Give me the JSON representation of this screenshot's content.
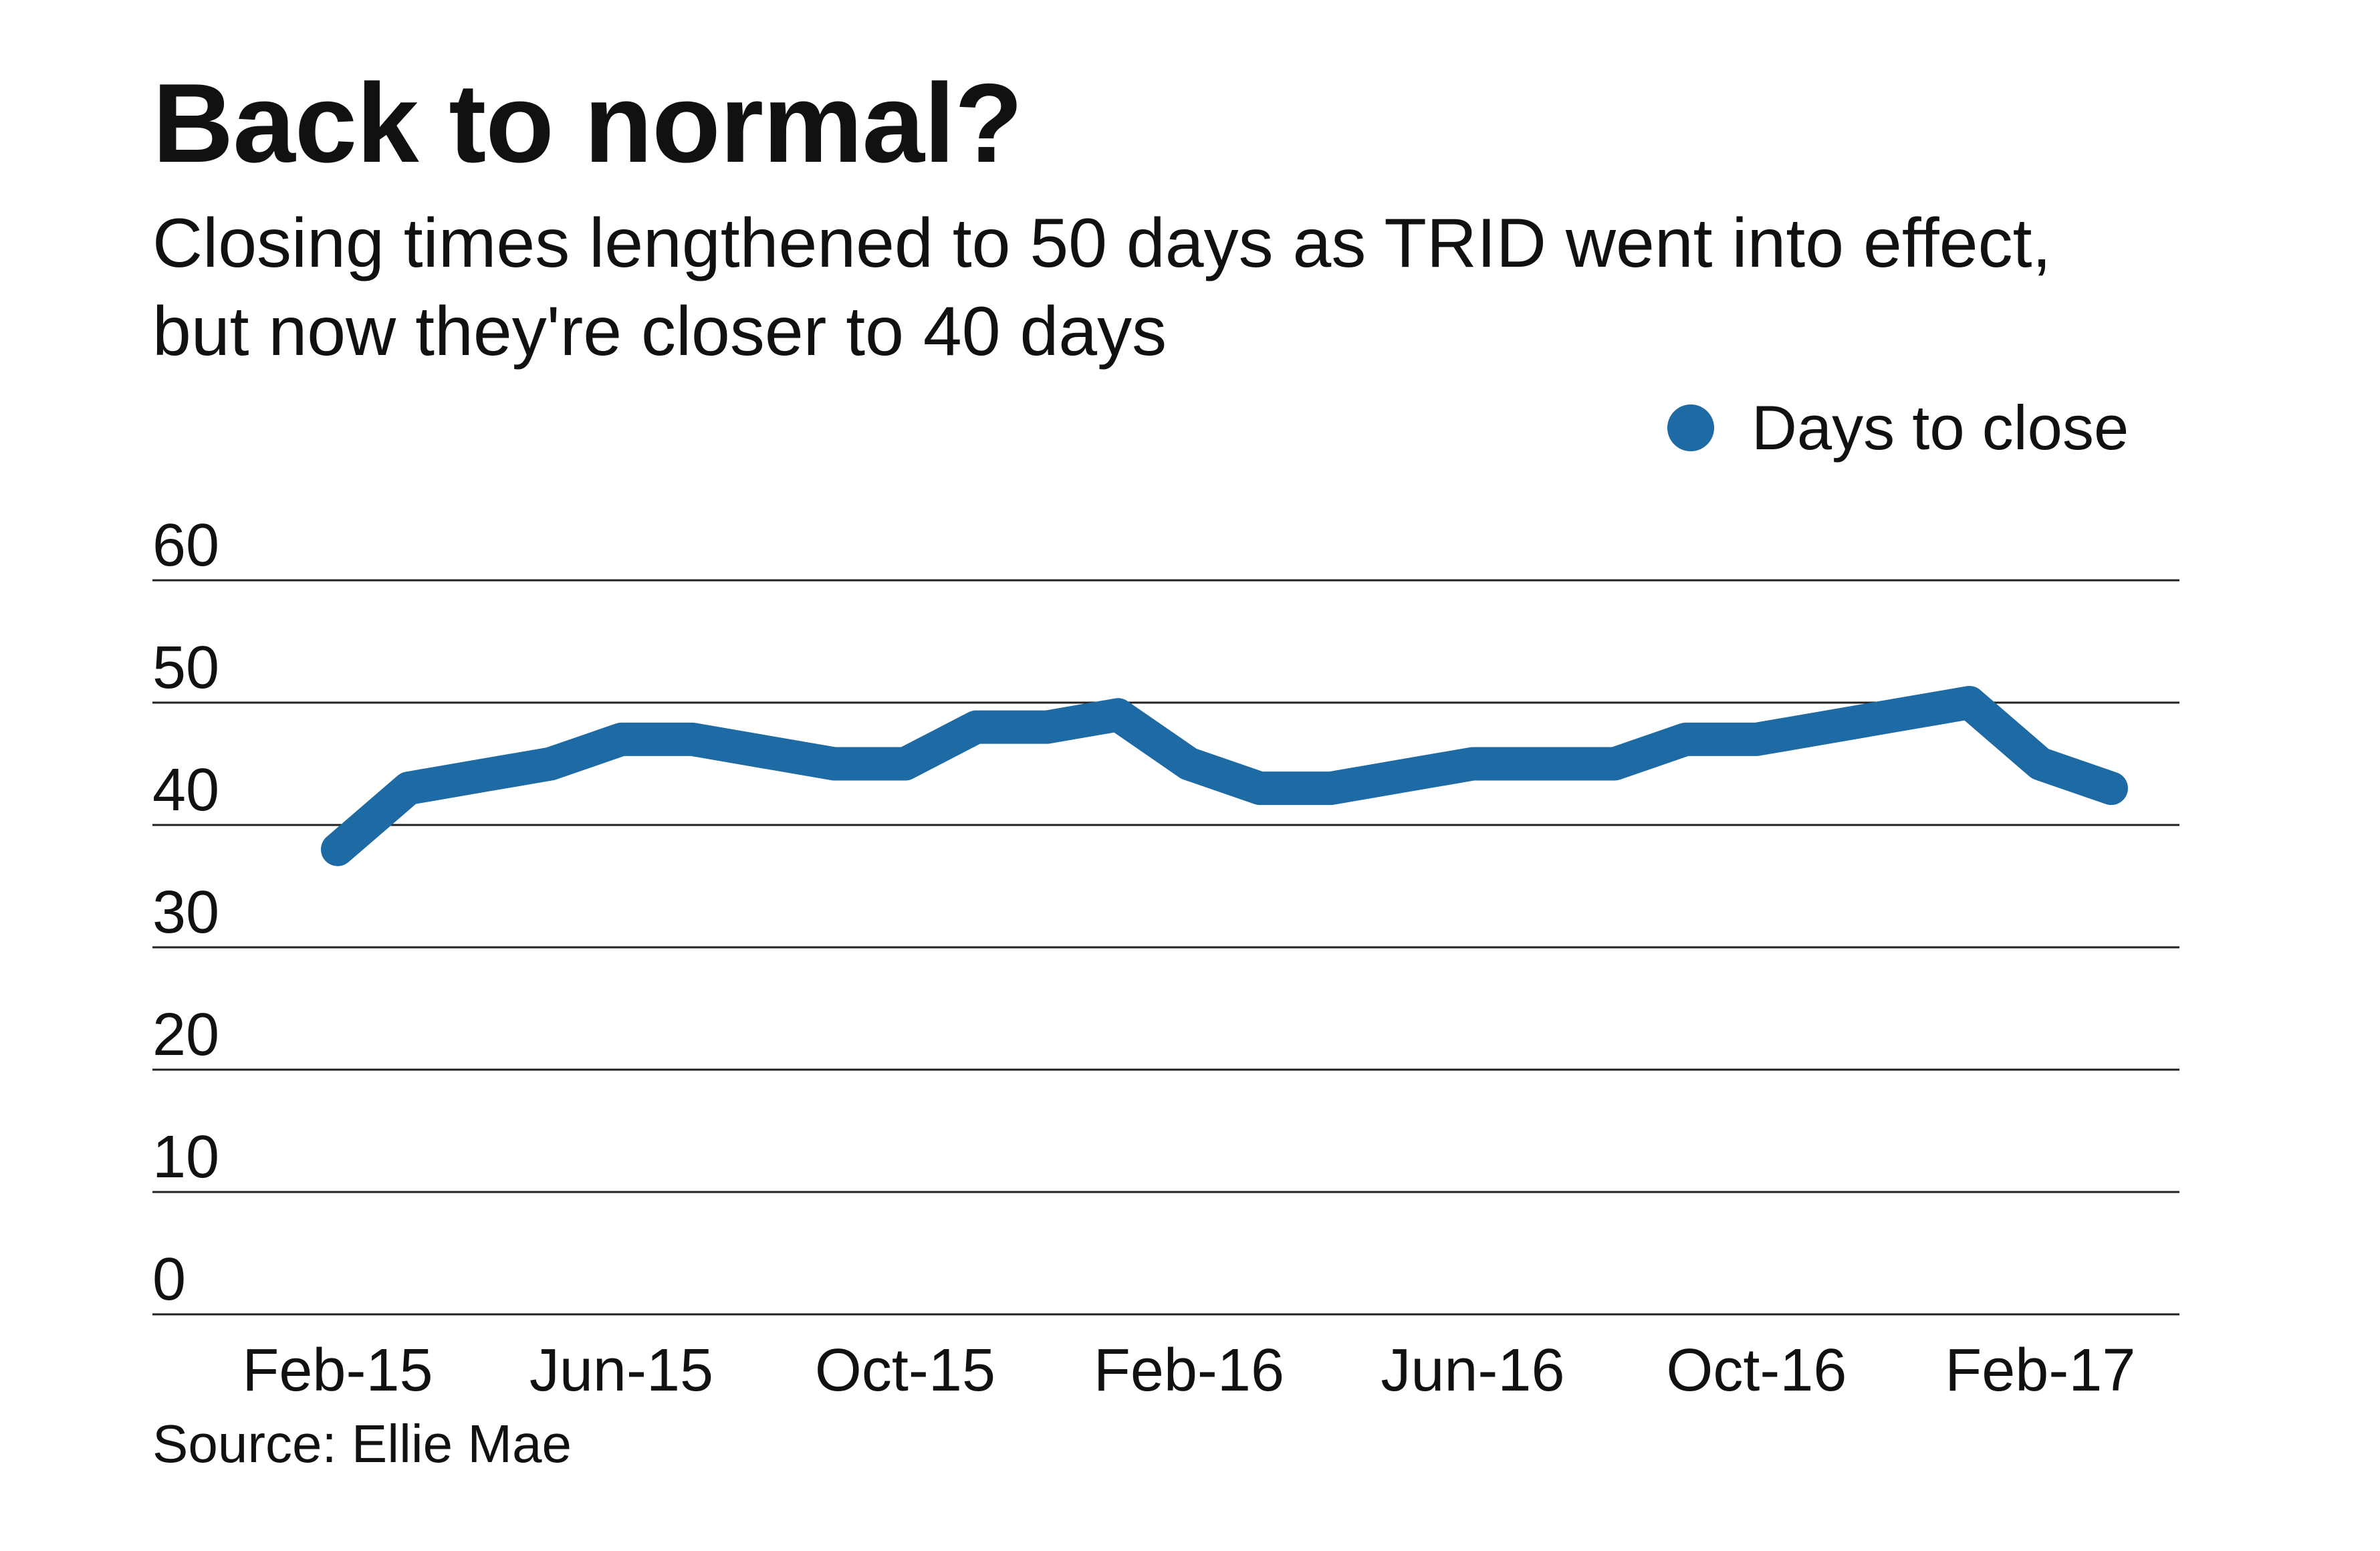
{
  "title": "Back to normal?",
  "subtitle": "Closing times lengthened to 50 days as TRID went into effect, but now they're closer to 40 days",
  "source": "Source: Ellie Mae",
  "colors": {
    "series": "#1d6aa5",
    "gridline": "#222222",
    "text": "#111111"
  },
  "chart_data": {
    "type": "line",
    "title": "Back to normal?",
    "subtitle": "Closing times lengthened to 50 days as TRID went into effect, but now they're closer to 40 days",
    "xlabel": "",
    "ylabel": "",
    "ylim": [
      0,
      60
    ],
    "yticks": [
      0,
      10,
      20,
      30,
      40,
      50,
      60
    ],
    "x": [
      "Feb-15",
      "Mar-15",
      "Apr-15",
      "May-15",
      "Jun-15",
      "Jul-15",
      "Aug-15",
      "Sep-15",
      "Oct-15",
      "Nov-15",
      "Dec-15",
      "Jan-16",
      "Feb-16",
      "Mar-16",
      "Apr-16",
      "May-16",
      "Jun-16",
      "Jul-16",
      "Aug-16",
      "Sep-16",
      "Oct-16",
      "Nov-16",
      "Dec-16",
      "Jan-17",
      "Feb-17",
      "Mar-17"
    ],
    "xtick_labels": [
      "Feb-15",
      "Jun-15",
      "Oct-15",
      "Feb-16",
      "Jun-16",
      "Oct-16",
      "Feb-17"
    ],
    "grid": true,
    "legend_position": "top-right",
    "series": [
      {
        "name": "Days to close",
        "color": "#1d6aa5",
        "values": [
          38,
          43,
          44,
          45,
          47,
          47,
          46,
          45,
          45,
          48,
          48,
          49,
          45,
          43,
          43,
          44,
          45,
          45,
          45,
          47,
          47,
          48,
          49,
          50,
          45,
          43
        ]
      }
    ]
  }
}
